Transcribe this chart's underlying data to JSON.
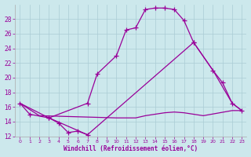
{
  "xlabel": "Windchill (Refroidissement éolien,°C)",
  "bg_color": "#cce8ec",
  "grid_color": "#aaccd4",
  "line_color": "#990099",
  "xlim": [
    -0.5,
    23.5
  ],
  "ylim": [
    12,
    30
  ],
  "xticks": [
    0,
    1,
    2,
    3,
    4,
    5,
    6,
    7,
    8,
    9,
    10,
    11,
    12,
    13,
    14,
    15,
    16,
    17,
    18,
    19,
    20,
    21,
    22,
    23
  ],
  "yticks": [
    12,
    14,
    16,
    18,
    20,
    22,
    24,
    26,
    28
  ],
  "series": [
    {
      "x": [
        3,
        7,
        8,
        10,
        11,
        12,
        13,
        14,
        15,
        16,
        17,
        18
      ],
      "y": [
        14.5,
        16.5,
        20.5,
        23.0,
        26.5,
        26.8,
        29.3,
        29.5,
        29.5,
        29.3,
        27.8,
        24.8
      ],
      "marker": true
    },
    {
      "x": [
        0,
        1,
        3,
        4,
        5,
        6,
        7
      ],
      "y": [
        16.5,
        15.0,
        14.5,
        13.8,
        12.5,
        12.7,
        12.2
      ],
      "marker": true
    },
    {
      "x": [
        18,
        20,
        21,
        22,
        23
      ],
      "y": [
        24.8,
        21.0,
        19.3,
        16.5,
        15.5
      ],
      "marker": true
    },
    {
      "x": [
        0,
        2,
        10,
        11,
        12,
        13,
        14,
        15,
        16,
        17,
        18,
        19,
        22,
        23
      ],
      "y": [
        16.5,
        14.8,
        14.5,
        14.5,
        14.5,
        14.8,
        15.0,
        15.2,
        15.3,
        15.2,
        15.0,
        14.8,
        15.5,
        15.5
      ],
      "marker": false
    },
    {
      "x": [
        0,
        3,
        7,
        18,
        20,
        22,
        23
      ],
      "y": [
        16.5,
        14.5,
        12.2,
        24.8,
        21.0,
        16.5,
        15.5
      ],
      "marker": false
    }
  ]
}
